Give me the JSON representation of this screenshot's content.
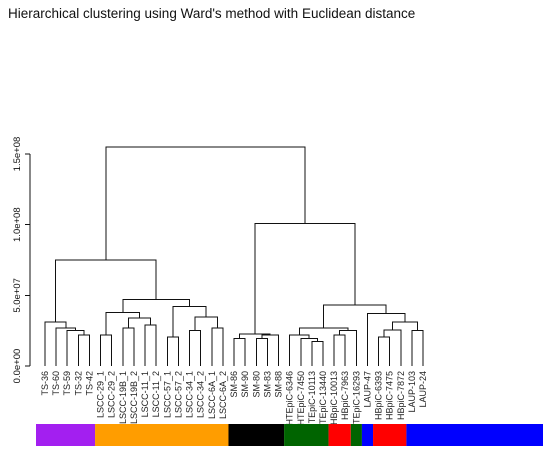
{
  "chart_data": {
    "type": "dendrogram",
    "title": "Hierarchical clustering using Ward's method with Euclidean distance",
    "yaxis": {
      "ylim": [
        0,
        150000000
      ],
      "ticks": [
        {
          "value": 0,
          "label": "0.0e+00"
        },
        {
          "value": 50000000,
          "label": "5.0e+07"
        },
        {
          "value": 100000000,
          "label": "1.0e+08"
        },
        {
          "value": 150000000,
          "label": "1.5e+08"
        }
      ]
    },
    "leaves": [
      "TS-36",
      "TS-60",
      "TS-59",
      "TS-32",
      "TS-42",
      "LSCC-29_1",
      "LSCC-29_2",
      "LSCC-19B_1",
      "LSCC-19B_2",
      "LSCC-11_1",
      "LSCC-11_2",
      "LSCC-57_1",
      "LSCC-57_2",
      "LSCC-34_1",
      "LSCC-34_2",
      "LSCC-6A_1",
      "LSCC-6A_2",
      "SM-86",
      "SM-90",
      "SM-80",
      "SM-83",
      "SM-88",
      "HTEpiC-6346",
      "HTEpiC-7450",
      "HTEpiC-10113",
      "HTEpiC-13440",
      "HBpiC-10013",
      "HBpiC-7963",
      "HTEpiC-16293",
      "LAUP-47",
      "HBpiC-6393",
      "HBpiC-7475",
      "HBpiC-7872",
      "LAUP-103",
      "LAUP-24"
    ],
    "merges": [
      {
        "id": "c1",
        "children": [
          "TS-32",
          "TS-42"
        ],
        "height": 22000000
      },
      {
        "id": "c2",
        "children": [
          "TS-59",
          "c1"
        ],
        "height": 25000000
      },
      {
        "id": "c3",
        "children": [
          "TS-60",
          "c2"
        ],
        "height": 27000000
      },
      {
        "id": "c4",
        "children": [
          "TS-36",
          "c3"
        ],
        "height": 31000000
      },
      {
        "id": "c5",
        "children": [
          "LSCC-29_1",
          "LSCC-29_2"
        ],
        "height": 22000000
      },
      {
        "id": "c6",
        "children": [
          "LSCC-19B_1",
          "LSCC-19B_2"
        ],
        "height": 27000000
      },
      {
        "id": "c7",
        "children": [
          "LSCC-11_1",
          "LSCC-11_2"
        ],
        "height": 29000000
      },
      {
        "id": "c8",
        "children": [
          "c6",
          "c7"
        ],
        "height": 34000000
      },
      {
        "id": "c9",
        "children": [
          "c5",
          "c8"
        ],
        "height": 38000000
      },
      {
        "id": "c10",
        "children": [
          "LSCC-57_1",
          "LSCC-57_2"
        ],
        "height": 20500000
      },
      {
        "id": "c11",
        "children": [
          "LSCC-34_1",
          "LSCC-34_2"
        ],
        "height": 25000000
      },
      {
        "id": "c12",
        "children": [
          "LSCC-6A_1",
          "LSCC-6A_2"
        ],
        "height": 27000000
      },
      {
        "id": "c13",
        "children": [
          "c11",
          "c12"
        ],
        "height": 34500000
      },
      {
        "id": "c14",
        "children": [
          "c10",
          "c13"
        ],
        "height": 42000000
      },
      {
        "id": "c15",
        "children": [
          "c9",
          "c14"
        ],
        "height": 47000000
      },
      {
        "id": "c16",
        "children": [
          "c4",
          "c15"
        ],
        "height": 75000000
      },
      {
        "id": "c17",
        "children": [
          "SM-80",
          "SM-83"
        ],
        "height": 19500000
      },
      {
        "id": "c18",
        "children": [
          "c17",
          "SM-88"
        ],
        "height": 22000000
      },
      {
        "id": "c19",
        "children": [
          "SM-86",
          "SM-90"
        ],
        "height": 19500000
      },
      {
        "id": "c20",
        "children": [
          "c19",
          "c18"
        ],
        "height": 22500000
      },
      {
        "id": "c21",
        "children": [
          "HTEpiC-10113",
          "HTEpiC-13440"
        ],
        "height": 17500000
      },
      {
        "id": "c22",
        "children": [
          "HTEpiC-7450",
          "c21"
        ],
        "height": 19500000
      },
      {
        "id": "c23",
        "children": [
          "HTEpiC-6346",
          "c22"
        ],
        "height": 22000000
      },
      {
        "id": "c24",
        "children": [
          "HBpiC-10013",
          "HBpiC-7963"
        ],
        "height": 22000000
      },
      {
        "id": "c25",
        "children": [
          "c24",
          "HTEpiC-16293"
        ],
        "height": 25000000
      },
      {
        "id": "c26",
        "children": [
          "c23",
          "c25"
        ],
        "height": 27000000
      },
      {
        "id": "c27",
        "children": [
          "HBpiC-6393",
          "HBpiC-7475"
        ],
        "height": 20500000
      },
      {
        "id": "c28",
        "children": [
          "c27",
          "HBpiC-7872"
        ],
        "height": 25500000
      },
      {
        "id": "c29",
        "children": [
          "LAUP-103",
          "LAUP-24"
        ],
        "height": 25000000
      },
      {
        "id": "c30",
        "children": [
          "c28",
          "c29"
        ],
        "height": 31000000
      },
      {
        "id": "c31",
        "children": [
          "LAUP-47",
          "c30"
        ],
        "height": 37000000
      },
      {
        "id": "c32",
        "children": [
          "c26",
          "c31"
        ],
        "height": 43000000
      },
      {
        "id": "c33",
        "children": [
          "c20",
          "c32"
        ],
        "height": 101000000
      },
      {
        "id": "c34",
        "children": [
          "c16",
          "c33"
        ],
        "height": 155000000
      }
    ],
    "color_bar": {
      "segments": [
        {
          "start": 0,
          "end": 4,
          "color": "#a31ff0"
        },
        {
          "start": 5,
          "end": 16,
          "color": "#ff9d00"
        },
        {
          "start": 17,
          "end": 21,
          "color": "#000000"
        },
        {
          "start": 22,
          "end": 25,
          "color": "#006400"
        },
        {
          "start": 26,
          "end": 27,
          "color": "#ff0000"
        },
        {
          "start": 28,
          "end": 28,
          "color": "#006400"
        },
        {
          "start": 29,
          "end": 29,
          "color": "#0000ff"
        },
        {
          "start": 30,
          "end": 32,
          "color": "#ff0000"
        },
        {
          "start": 33,
          "end": 34,
          "color": "#0000ff"
        }
      ]
    }
  }
}
